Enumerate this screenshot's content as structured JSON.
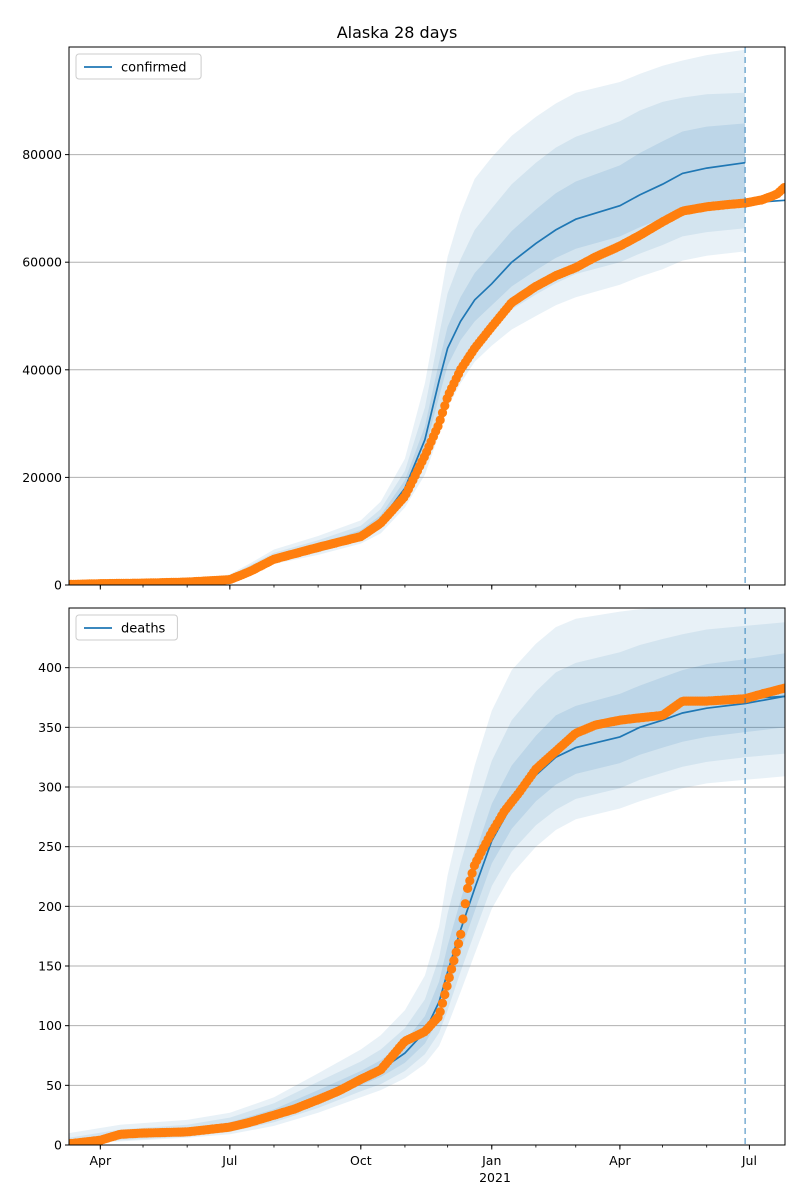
{
  "figure": {
    "title": "Alaska 28 days",
    "year_label": "2021"
  },
  "colors": {
    "model": "#1f77b4",
    "observed": "#ff7f0e",
    "band": "#1f77b4",
    "grid": "#b0b0b0"
  },
  "chart_data": [
    {
      "type": "line",
      "name": "confirmed",
      "legend": "confirmed",
      "legend_position": "top-left",
      "grid": "horizontal",
      "xlim": [
        "2020-03-10",
        "2021-07-26"
      ],
      "ylim": [
        0,
        100000
      ],
      "yticks": [
        0,
        20000,
        40000,
        60000,
        80000
      ],
      "forecast_start": "2021-06-28",
      "xticks": [
        {
          "date": "2020-04-01",
          "label": "Apr"
        },
        {
          "date": "2020-07-01",
          "label": "Jul"
        },
        {
          "date": "2020-10-01",
          "label": "Oct"
        },
        {
          "date": "2021-01-01",
          "label": "Jan"
        },
        {
          "date": "2021-04-01",
          "label": "Apr"
        },
        {
          "date": "2021-07-01",
          "label": "Jul"
        }
      ],
      "model_x": [
        "2020-03-10",
        "2020-05-01",
        "2020-06-15",
        "2020-07-01",
        "2020-07-15",
        "2020-08-01",
        "2020-09-01",
        "2020-10-01",
        "2020-10-15",
        "2020-11-01",
        "2020-11-15",
        "2020-11-25",
        "2020-12-01",
        "2020-12-10",
        "2020-12-20",
        "2021-01-01",
        "2021-01-15",
        "2021-02-01",
        "2021-02-15",
        "2021-03-01",
        "2021-04-01",
        "2021-04-15",
        "2021-05-01",
        "2021-05-15",
        "2021-06-01",
        "2021-06-28"
      ],
      "model_y": [
        200,
        400,
        800,
        1500,
        3000,
        5000,
        7000,
        9500,
        12000,
        18000,
        27000,
        38000,
        44000,
        49000,
        53000,
        56000,
        60000,
        63500,
        66000,
        68000,
        70500,
        72500,
        74500,
        76500,
        77500,
        78500
      ],
      "band_inner_low": [
        180,
        350,
        700,
        1350,
        2700,
        4600,
        6500,
        8900,
        11200,
        16800,
        25000,
        35000,
        40800,
        45500,
        49000,
        52000,
        55500,
        58500,
        60800,
        62500,
        64800,
        66500,
        68200,
        69800,
        70700,
        71500
      ],
      "band_inner_high": [
        230,
        450,
        900,
        1650,
        3300,
        5500,
        7600,
        10200,
        13000,
        19500,
        29500,
        41500,
        48000,
        53500,
        58000,
        61500,
        65800,
        69800,
        72800,
        75000,
        78000,
        80300,
        82500,
        84300,
        85200,
        85800
      ],
      "band_mid_low": [
        160,
        300,
        620,
        1220,
        2450,
        4250,
        6050,
        8300,
        10400,
        15600,
        22800,
        31500,
        37000,
        41500,
        45200,
        48200,
        51200,
        54000,
        56100,
        57800,
        60000,
        61600,
        63200,
        64800,
        65600,
        66300
      ],
      "band_mid_high": [
        260,
        520,
        1020,
        1820,
        3650,
        6000,
        8300,
        11000,
        14100,
        21200,
        33000,
        46500,
        54200,
        60500,
        66000,
        70000,
        74500,
        78500,
        81300,
        83300,
        86200,
        88200,
        89800,
        90600,
        91200,
        91500
      ],
      "band_outer_low": [
        140,
        250,
        550,
        1100,
        2200,
        3900,
        5600,
        7700,
        9600,
        14400,
        20500,
        28000,
        33000,
        37500,
        41500,
        44500,
        47500,
        50000,
        52000,
        53500,
        55800,
        57300,
        58700,
        60300,
        61200,
        62000
      ],
      "band_outer_high": [
        300,
        600,
        1150,
        2000,
        4000,
        6600,
        9100,
        12000,
        15500,
        23500,
        37500,
        52000,
        61000,
        69000,
        75500,
        79500,
        83500,
        87000,
        89500,
        91500,
        93500,
        95000,
        96500,
        97500,
        98500,
        99500
      ],
      "observed_x": [
        "2020-03-10",
        "2020-04-01",
        "2020-05-01",
        "2020-06-01",
        "2020-07-01",
        "2020-07-15",
        "2020-08-01",
        "2020-09-01",
        "2020-10-01",
        "2020-10-15",
        "2020-11-01",
        "2020-11-15",
        "2020-11-25",
        "2020-12-01",
        "2020-12-10",
        "2020-12-20",
        "2021-01-01",
        "2021-01-15",
        "2021-02-01",
        "2021-02-15",
        "2021-03-01",
        "2021-03-15",
        "2021-04-01",
        "2021-04-15",
        "2021-05-01",
        "2021-05-15",
        "2021-06-01",
        "2021-06-15",
        "2021-06-28",
        "2021-07-10",
        "2021-07-20",
        "2021-07-26"
      ],
      "observed_y": [
        100,
        250,
        350,
        550,
        1000,
        2500,
        4800,
        7000,
        9000,
        11500,
        16500,
        24000,
        30000,
        35000,
        40000,
        44000,
        48000,
        52500,
        55500,
        57500,
        59000,
        61000,
        63000,
        65000,
        67500,
        69500,
        70300,
        70700,
        71000,
        71600,
        72600,
        74000
      ],
      "projection_x": [
        "2021-06-28",
        "2021-07-26"
      ],
      "projection_y": [
        71000,
        71500
      ]
    },
    {
      "type": "line",
      "name": "deaths",
      "legend": "deaths",
      "legend_position": "top-left",
      "grid": "horizontal",
      "xlim": [
        "2020-03-10",
        "2021-07-26"
      ],
      "ylim": [
        0,
        450
      ],
      "yticks": [
        0,
        50,
        100,
        150,
        200,
        250,
        300,
        350,
        400
      ],
      "forecast_start": "2021-06-28",
      "xticks": [
        {
          "date": "2020-04-01",
          "label": "Apr"
        },
        {
          "date": "2020-07-01",
          "label": "Jul"
        },
        {
          "date": "2020-10-01",
          "label": "Oct"
        },
        {
          "date": "2021-01-01",
          "label": "Jan"
        },
        {
          "date": "2021-04-01",
          "label": "Apr"
        },
        {
          "date": "2021-07-01",
          "label": "Jul"
        }
      ],
      "model_x": [
        "2020-03-10",
        "2020-04-15",
        "2020-06-01",
        "2020-07-01",
        "2020-08-01",
        "2020-09-01",
        "2020-10-01",
        "2020-10-15",
        "2020-11-01",
        "2020-11-15",
        "2020-11-25",
        "2020-12-01",
        "2020-12-10",
        "2020-12-20",
        "2021-01-01",
        "2021-01-15",
        "2021-02-01",
        "2021-02-15",
        "2021-03-01",
        "2021-04-01",
        "2021-04-15",
        "2021-05-01",
        "2021-05-15",
        "2021-06-01",
        "2021-06-28",
        "2021-07-26"
      ],
      "model_y": [
        2,
        7,
        11,
        15,
        25,
        40,
        55,
        63,
        77,
        95,
        120,
        145,
        180,
        215,
        255,
        285,
        310,
        325,
        333,
        342,
        350,
        356,
        362,
        366,
        370,
        376
      ],
      "band_inner_low": [
        1,
        5,
        9,
        13,
        22,
        35,
        50,
        57,
        69,
        85,
        106,
        128,
        162,
        196,
        236,
        265,
        288,
        302,
        311,
        320,
        327,
        333,
        338,
        342,
        346,
        350
      ],
      "band_inner_high": [
        4,
        10,
        14,
        19,
        30,
        46,
        62,
        71,
        87,
        108,
        137,
        167,
        205,
        243,
        286,
        318,
        343,
        360,
        368,
        378,
        385,
        392,
        398,
        403,
        407,
        412
      ],
      "band_mid_low": [
        1,
        4,
        7,
        11,
        19,
        31,
        45,
        51,
        62,
        76,
        94,
        113,
        145,
        178,
        217,
        246,
        268,
        281,
        290,
        299,
        306,
        312,
        317,
        321,
        325,
        328
      ],
      "band_mid_high": [
        6,
        13,
        17,
        23,
        35,
        53,
        70,
        80,
        98,
        122,
        157,
        194,
        236,
        277,
        322,
        356,
        380,
        396,
        404,
        413,
        419,
        424,
        428,
        432,
        435,
        438
      ],
      "band_outer_low": [
        1,
        3,
        6,
        9,
        16,
        27,
        40,
        46,
        56,
        68,
        83,
        100,
        128,
        160,
        198,
        227,
        250,
        264,
        273,
        282,
        288,
        294,
        299,
        303,
        306,
        309
      ],
      "band_outer_high": [
        10,
        17,
        21,
        27,
        40,
        60,
        80,
        92,
        113,
        142,
        183,
        226,
        272,
        318,
        364,
        398,
        420,
        434,
        441,
        447,
        449,
        450,
        450,
        450,
        450,
        450
      ],
      "observed_x": [
        "2020-03-10",
        "2020-04-01",
        "2020-04-15",
        "2020-05-01",
        "2020-06-01",
        "2020-07-01",
        "2020-07-15",
        "2020-08-01",
        "2020-08-15",
        "2020-09-01",
        "2020-09-15",
        "2020-10-01",
        "2020-10-15",
        "2020-11-01",
        "2020-11-15",
        "2020-11-25",
        "2020-12-01",
        "2020-12-10",
        "2020-12-15",
        "2020-12-20",
        "2021-01-01",
        "2021-01-10",
        "2021-01-20",
        "2021-02-01",
        "2021-02-15",
        "2021-03-01",
        "2021-03-15",
        "2021-04-01",
        "2021-04-15",
        "2021-05-01",
        "2021-05-15",
        "2021-06-01",
        "2021-06-15",
        "2021-06-28",
        "2021-07-10",
        "2021-07-26"
      ],
      "observed_y": [
        1,
        4,
        9,
        10,
        11,
        15,
        19,
        25,
        30,
        38,
        45,
        55,
        63,
        87,
        95,
        108,
        135,
        175,
        215,
        235,
        262,
        280,
        295,
        315,
        330,
        345,
        352,
        356,
        358,
        360,
        372,
        372,
        373,
        374,
        378,
        383
      ],
      "projection_x": [
        "2021-06-28",
        "2021-07-26"
      ],
      "projection_y": [
        374,
        376
      ]
    }
  ]
}
